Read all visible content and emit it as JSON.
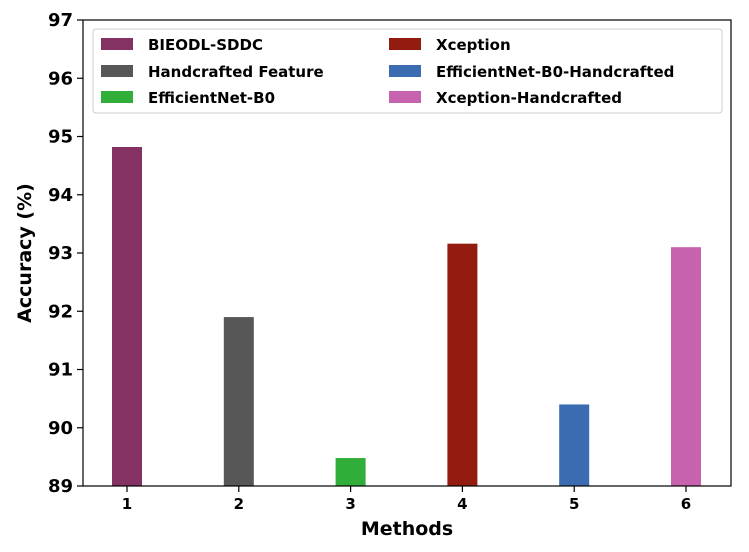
{
  "chart_data": {
    "type": "bar",
    "xlabel": "Methods",
    "ylabel": "Accuracy (%)",
    "ylim": [
      89,
      97
    ],
    "yticks": [
      89,
      90,
      91,
      92,
      93,
      94,
      95,
      96,
      97
    ],
    "categories": [
      "1",
      "2",
      "3",
      "4",
      "5",
      "6"
    ],
    "series": [
      {
        "name": "BIEODL-SDDC",
        "category": "1",
        "value": 94.82,
        "color": "#833263"
      },
      {
        "name": "Handcrafted Feature",
        "category": "2",
        "value": 91.9,
        "color": "#575757"
      },
      {
        "name": "EfficientNet-B0",
        "category": "3",
        "value": 89.48,
        "color": "#31ae3a"
      },
      {
        "name": "Xception",
        "category": "4",
        "value": 93.16,
        "color": "#931b0f"
      },
      {
        "name": "EfficientNet-B0-Handcrafted",
        "category": "5",
        "value": 90.4,
        "color": "#3b6bb1"
      },
      {
        "name": "Xception-Handcrafted",
        "category": "6",
        "value": 93.1,
        "color": "#c762ae"
      }
    ],
    "legend_placement": "top",
    "grid": false
  }
}
